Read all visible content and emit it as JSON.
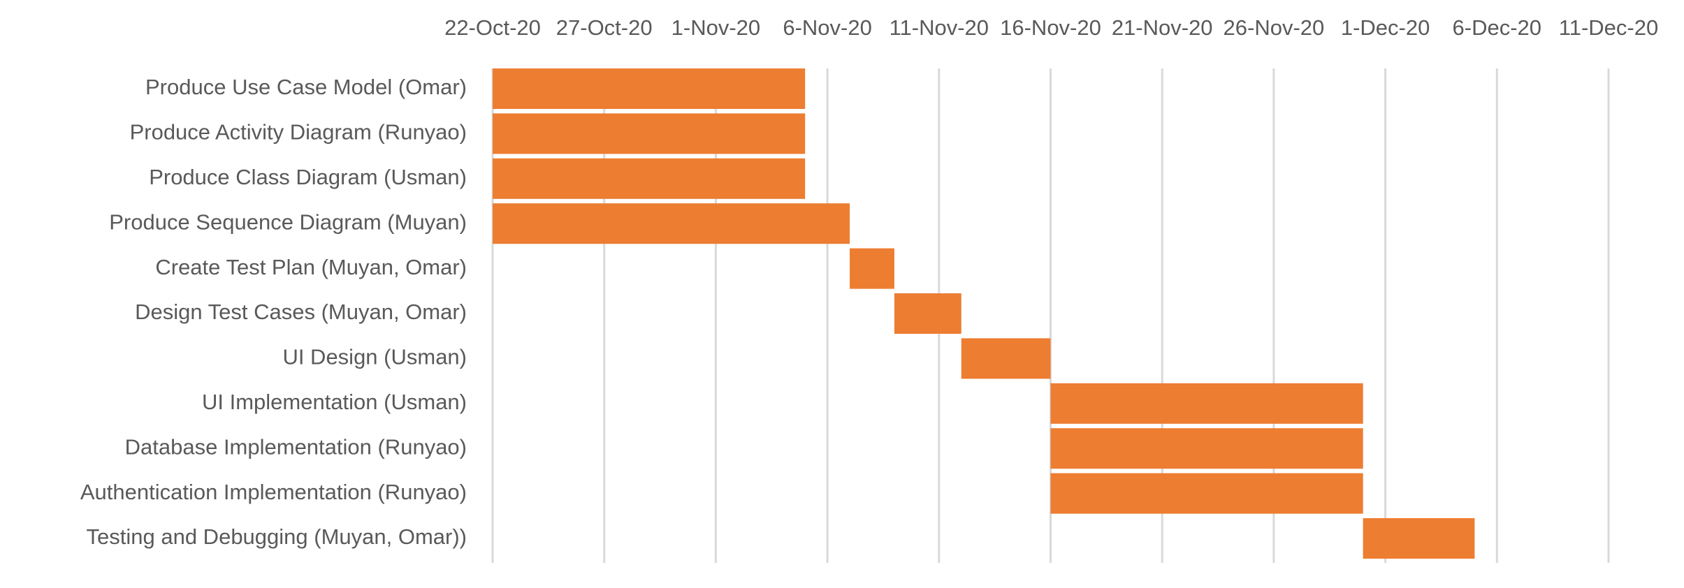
{
  "chart_data": {
    "type": "gantt",
    "title": "",
    "xlabel": "",
    "ylabel": "",
    "x_axis_position": "top",
    "grid": true,
    "legend": "none",
    "bar_color": "#ED7D31",
    "grid_color": "#D9D9D9",
    "text_color": "#595959",
    "xlim": [
      "2020-10-22",
      "2020-12-11"
    ],
    "ticks": [
      {
        "date": "2020-10-22",
        "label": "22-Oct-20"
      },
      {
        "date": "2020-10-27",
        "label": "27-Oct-20"
      },
      {
        "date": "2020-11-01",
        "label": "1-Nov-20"
      },
      {
        "date": "2020-11-06",
        "label": "6-Nov-20"
      },
      {
        "date": "2020-11-11",
        "label": "11-Nov-20"
      },
      {
        "date": "2020-11-16",
        "label": "16-Nov-20"
      },
      {
        "date": "2020-11-21",
        "label": "21-Nov-20"
      },
      {
        "date": "2020-11-26",
        "label": "26-Nov-20"
      },
      {
        "date": "2020-12-01",
        "label": "1-Dec-20"
      },
      {
        "date": "2020-12-06",
        "label": "6-Dec-20"
      },
      {
        "date": "2020-12-11",
        "label": "11-Dec-20"
      }
    ],
    "tasks": [
      {
        "name": "Produce Use Case Model (Omar)",
        "start": "2020-10-22",
        "end": "2020-11-05"
      },
      {
        "name": "Produce Activity Diagram (Runyao)",
        "start": "2020-10-22",
        "end": "2020-11-05"
      },
      {
        "name": "Produce Class Diagram (Usman)",
        "start": "2020-10-22",
        "end": "2020-11-05"
      },
      {
        "name": "Produce Sequence Diagram (Muyan)",
        "start": "2020-10-22",
        "end": "2020-11-07"
      },
      {
        "name": "Create Test Plan (Muyan, Omar)",
        "start": "2020-11-07",
        "end": "2020-11-09"
      },
      {
        "name": "Design Test Cases (Muyan, Omar)",
        "start": "2020-11-09",
        "end": "2020-11-12"
      },
      {
        "name": "UI Design (Usman)",
        "start": "2020-11-12",
        "end": "2020-11-16"
      },
      {
        "name": "UI Implementation (Usman)",
        "start": "2020-11-16",
        "end": "2020-11-30"
      },
      {
        "name": "Database Implementation (Runyao)",
        "start": "2020-11-16",
        "end": "2020-11-30"
      },
      {
        "name": "Authentication Implementation (Runyao)",
        "start": "2020-11-16",
        "end": "2020-11-30"
      },
      {
        "name": "Testing and Debugging (Muyan, Omar))",
        "start": "2020-11-30",
        "end": "2020-12-05"
      }
    ]
  }
}
